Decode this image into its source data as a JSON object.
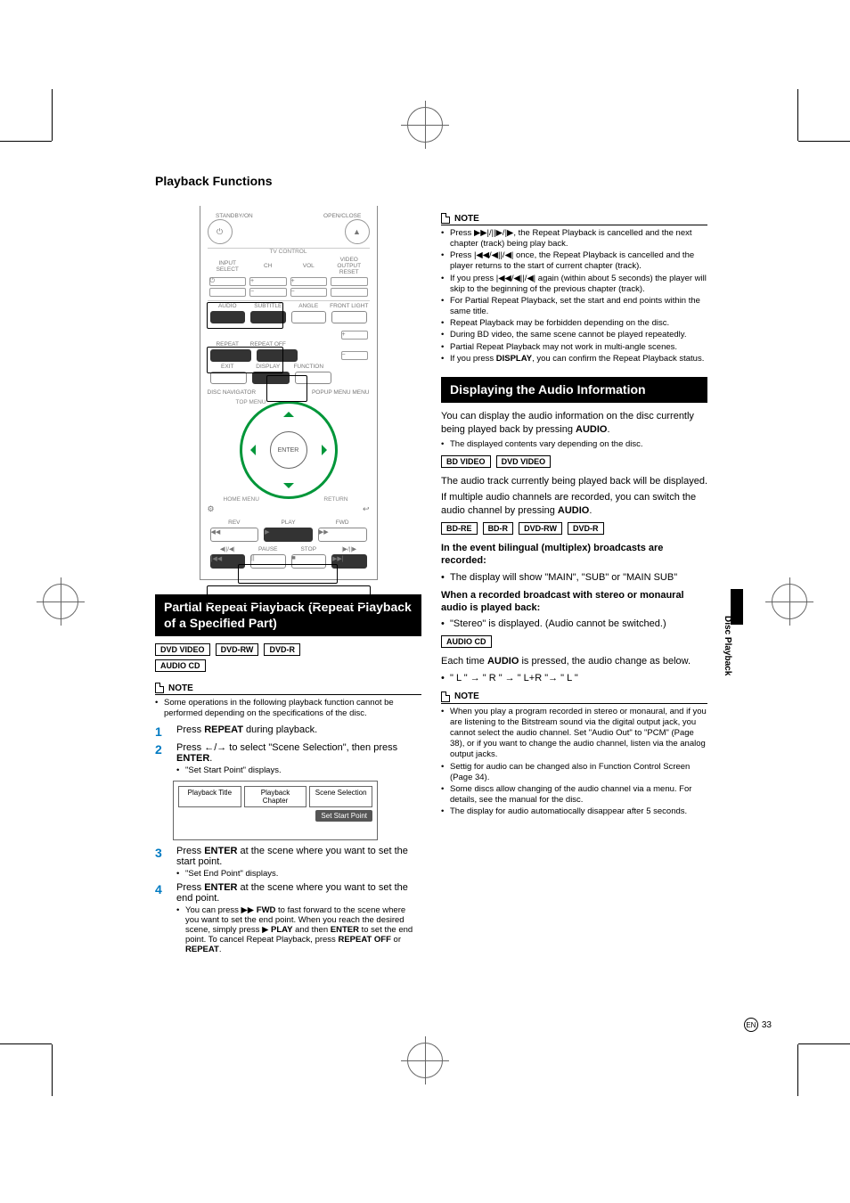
{
  "page": {
    "title": "Playback Functions",
    "side_tab": "Disc Playback",
    "page_num_label": "EN",
    "page_num": "33"
  },
  "remote": {
    "standby": "STANDBY/ON",
    "open": "OPEN/CLOSE",
    "tv_control": "TV CONTROL",
    "input": "INPUT\nSELECT",
    "ch": "CH",
    "vol": "VOL",
    "video_out": "VIDEO OUTPUT\nRESET",
    "audio": "AUDIO",
    "subtitle": "SUBTITLE",
    "angle": "ANGLE",
    "front": "FRONT\nLIGHT",
    "repeat": "REPEAT",
    "repeat_off": "REPEAT OFF",
    "exit": "EXIT",
    "display": "DISPLAY",
    "function": "FUNCTION",
    "disc_nav": "DISC NAVIGATOR",
    "popup": "POPUP MENU\nMENU",
    "top_menu": "TOP MENU",
    "enter": "ENTER",
    "home": "HOME\nMENU",
    "return": "RETURN",
    "rev": "REV",
    "play": "PLAY",
    "fwd": "FWD",
    "pause": "PAUSE",
    "stop": "STOP"
  },
  "left": {
    "section_title": "Partial Repeat Playback (Repeat Playback of a Specified Part)",
    "badges": [
      "DVD VIDEO",
      "DVD-RW",
      "DVD-R",
      "AUDIO CD"
    ],
    "note_label": "NOTE",
    "note_items": [
      "Some operations in the following playback function cannot be performed depending on the specifications of the disc."
    ],
    "steps": [
      {
        "num": "1",
        "html": "Press <b>REPEAT</b> during playback."
      },
      {
        "num": "2",
        "html": "Press <span class='glyph'>←</span>/<span class='glyph'>→</span> to select \"Scene Selection\", then press <b>ENTER</b>.",
        "sub": "\"Set Start Point\" displays."
      },
      {
        "num": "3",
        "html": "Press <b>ENTER</b> at the scene where you want to set the start point.",
        "sub": "\"Set End Point\" displays."
      },
      {
        "num": "4",
        "html": "Press <b>ENTER</b> at the scene where you want to set the end point.",
        "subhtml": "You can press <span class='glyph'>▶▶</span> <b>FWD</b> to fast forward to the scene where you want to set the end point. When you reach the desired scene, simply press <span class='glyph'>▶</span> <b>PLAY</b> and then <b>ENTER</b> to set the end point. To cancel Repeat Playback, press <b>REPEAT OFF</b> or <b>REPEAT</b>."
      }
    ],
    "osd": {
      "tabs": [
        "Playback Title",
        "Playback Chapter",
        "Scene Selection"
      ],
      "action": "Set Start Point"
    }
  },
  "right": {
    "note_label": "NOTE",
    "top_notes": [
      "Press <span class='glyph'>▶▶|</span>/<span class='glyph'>||▶</span>/<span class='glyph'>|▶</span>, the Repeat Playback is cancelled and the next chapter (track) being play back.",
      "Press <span class='glyph'>|◀◀</span>/<span class='glyph'>◀||</span>/<span class='glyph'>◀|</span> once, the Repeat Playback is cancelled and the player returns to the start of current chapter (track).",
      "If you press <span class='glyph'>|◀◀</span>/<span class='glyph'>◀||</span>/<span class='glyph'>◀|</span> again (within about 5 seconds) the player will skip to the beginning of the previous chapter (track).",
      "For Partial Repeat Playback, set the start and end points within the same title.",
      "Repeat Playback may be forbidden depending on the disc.",
      "During BD video, the same scene cannot be played repeatedly.",
      "Partial Repeat Playback may not work in multi-angle scenes.",
      "If you press <b>DISPLAY</b>, you can confirm the Repeat Playback status."
    ],
    "section_title": "Displaying the Audio Information",
    "intro1": "You can display the audio information on the disc currently being played back by pressing <b>AUDIO</b>.",
    "intro_bullet": "The displayed contents vary depending on the disc.",
    "badges_a": [
      "BD VIDEO",
      "DVD VIDEO"
    ],
    "para_a": "The audio track currently being played back will be displayed.",
    "para_a2": "If multiple audio channels are recorded, you can switch the audio channel by pressing <b>AUDIO</b>.",
    "badges_b": [
      "BD-RE",
      "BD-R",
      "DVD-RW",
      "DVD-R"
    ],
    "sub_b_title": "In the event bilingual (multiplex) broadcasts are recorded:",
    "sub_b_bullet": "The display will show \"MAIN\", \"SUB\" or \"MAIN SUB\"",
    "sub_c_title": "When a recorded broadcast with stereo or monaural audio is played back:",
    "sub_c_bullet": "\"Stereo\" is displayed. (Audio cannot be switched.)",
    "badges_c": [
      "AUDIO CD"
    ],
    "para_c": "Each time <b>AUDIO</b>  is pressed, the audio change as below.",
    "cycle": "\" L \" → \" R \" → \" L+R \"→ \" L \"",
    "bottom_notes": [
      "When you play a program recorded in stereo or monaural, and if you are listening to the Bitstream sound via the digital output jack, you cannot select the audio channel. Set \"Audio Out\" to \"PCM\" (Page 38), or if you want to change the audio channel, listen via the analog output jacks.",
      "Settig for audio can be changed also in Function Control Screen (Page 34).",
      "Some discs allow changing of the audio channel via a menu. For details, see the manual for the disc.",
      "The display for audio automatiocally disappear after 5 seconds."
    ]
  }
}
